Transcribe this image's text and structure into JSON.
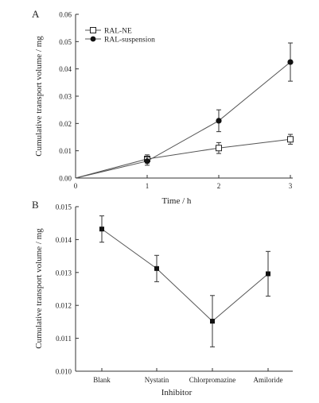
{
  "figure": {
    "panel_a_label": "A",
    "panel_b_label": "B"
  },
  "chart_data": [
    {
      "type": "line",
      "panel": "A",
      "xlabel": "Time / h",
      "ylabel": "Cumulative transport volume / mg",
      "xlim": [
        0,
        3
      ],
      "ylim": [
        0,
        0.06
      ],
      "x_ticks": [
        "0",
        "1",
        "2",
        "3"
      ],
      "y_ticks": [
        "0.00",
        "0.01",
        "0.02",
        "0.03",
        "0.04",
        "0.05",
        "0.06"
      ],
      "grid": false,
      "legend_position": "top-left",
      "x": [
        0,
        1,
        2,
        3
      ],
      "series": [
        {
          "name": "RAL-NE",
          "marker": "open-square",
          "values": [
            0,
            0.007,
            0.011,
            0.0142
          ],
          "errors": [
            0,
            0.0015,
            0.002,
            0.0018
          ]
        },
        {
          "name": "RAL-suspension",
          "marker": "filled-circle",
          "values": [
            0,
            0.0062,
            0.021,
            0.0425
          ],
          "errors": [
            0,
            0.0015,
            0.004,
            0.007
          ]
        }
      ]
    },
    {
      "type": "line",
      "panel": "B",
      "xlabel": "Inhibitor",
      "ylabel": "Cumulative transport volume / mg",
      "ylim": [
        0.01,
        0.015
      ],
      "y_ticks": [
        "0.010",
        "0.011",
        "0.012",
        "0.013",
        "0.014",
        "0.015"
      ],
      "grid": false,
      "categories": [
        "Blank",
        "Nystatin",
        "Chlorpromazine",
        "Amiloride"
      ],
      "series": [
        {
          "marker": "filled-square",
          "values": [
            0.01432,
            0.01312,
            0.01152,
            0.01296
          ],
          "errors": [
            0.0004,
            0.0004,
            0.00078,
            0.00068
          ]
        }
      ]
    }
  ]
}
